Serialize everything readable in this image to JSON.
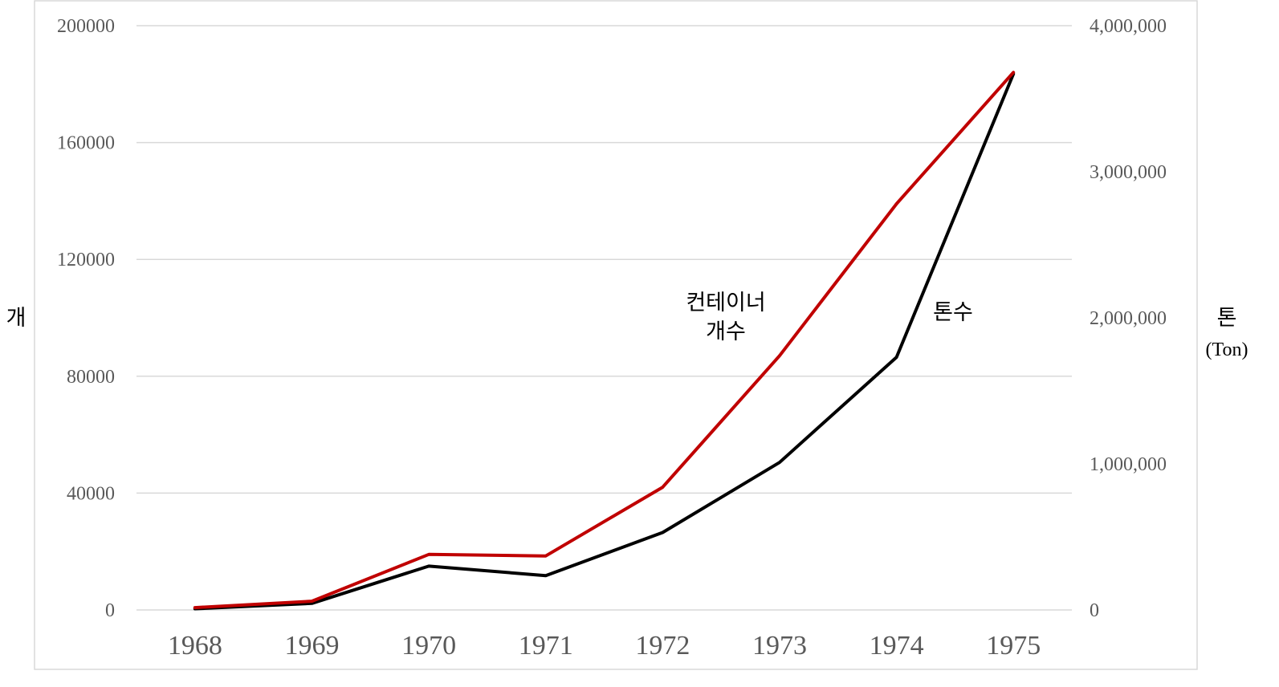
{
  "chart_data": {
    "type": "line",
    "categories": [
      "1968",
      "1969",
      "1970",
      "1971",
      "1972",
      "1973",
      "1974",
      "1975"
    ],
    "y_left": {
      "label": "개",
      "ylim": [
        0,
        200000
      ],
      "ticks": [
        "0",
        "40000",
        "80000",
        "120000",
        "160000",
        "200000"
      ],
      "tick_values": [
        0,
        40000,
        80000,
        120000,
        160000,
        200000
      ]
    },
    "y_right": {
      "label": "톤",
      "sublabel": "(Ton)",
      "ylim": [
        0,
        4000000
      ],
      "ticks": [
        "0",
        "1,000,000",
        "2,000,000",
        "3,000,000",
        "4,000,000"
      ],
      "tick_values": [
        0,
        1000000,
        2000000,
        3000000,
        4000000
      ]
    },
    "series": [
      {
        "name_lines": [
          "컨테이너",
          "개수"
        ],
        "axis": "left",
        "color": "#C00000",
        "values": [
          800,
          3000,
          19000,
          18500,
          42000,
          87000,
          139000,
          184000
        ]
      },
      {
        "name_lines": [
          "톤수"
        ],
        "axis": "right",
        "color": "#000000",
        "values": [
          8000,
          45000,
          300000,
          235000,
          530000,
          1010000,
          1730000,
          3670000
        ]
      }
    ],
    "grid": true,
    "legend": "inline annotations"
  }
}
